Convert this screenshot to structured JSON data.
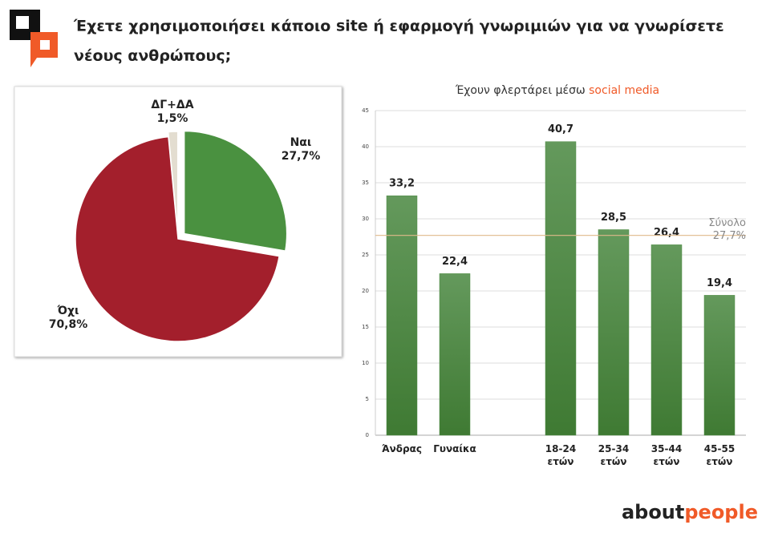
{
  "header": {
    "title": [
      "Έχετε χρησιμοποιήσει κάποιο site ή εφαρμογή γνωριμιών για να γνωρίσετε",
      "νέους ανθρώπους;"
    ]
  },
  "brand": [
    "about",
    "people"
  ],
  "chart_data": [
    {
      "type": "pie",
      "categories": [
        "Ναι",
        "Όχι",
        "ΔΓ+ΔΑ"
      ],
      "values": [
        27.7,
        70.8,
        1.5
      ],
      "value_labels": [
        "27,7%",
        "70,8%",
        "1,5%"
      ],
      "colors": [
        "#4a9140",
        "#a31f2c",
        "#e3ddd0"
      ]
    },
    {
      "type": "bar",
      "title": [
        "Έχουν φλερτάρει μέσω",
        "social media"
      ],
      "categories": [
        "Άνδρας",
        "Γυναίκα",
        null,
        "18-24\nετών",
        "25-34\nετών",
        "35-44\nετών",
        "45-55\nετών"
      ],
      "values": [
        33.2,
        22.4,
        null,
        40.7,
        28.5,
        26.4,
        19.4
      ],
      "value_labels": [
        "33,2",
        "22,4",
        null,
        "40,7",
        "28,5",
        "26,4",
        "19,4"
      ],
      "color": "#4e8b45",
      "ylim": [
        0,
        45
      ],
      "yticks": [
        0,
        5,
        10,
        15,
        20,
        25,
        30,
        35,
        40,
        45
      ],
      "grid": true,
      "reference": {
        "name": "Σύνολο",
        "value": 27.7,
        "label": "27,7%",
        "color": "#e0b98a"
      }
    }
  ]
}
